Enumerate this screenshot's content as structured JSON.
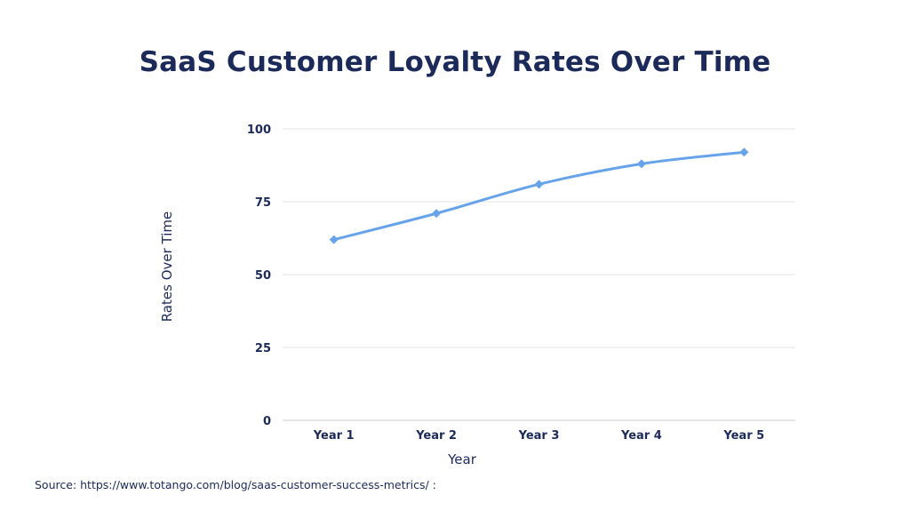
{
  "chart_data": {
    "type": "line",
    "title": "SaaS Customer Loyalty Rates Over Time",
    "xlabel": "Year",
    "ylabel": "Rates Over Time",
    "categories": [
      "Year 1",
      "Year 2",
      "Year 3",
      "Year 4",
      "Year 5"
    ],
    "series": [
      {
        "values": [
          62,
          71,
          81,
          88,
          92
        ]
      }
    ],
    "ylim": [
      0,
      100
    ],
    "yticks": [
      0,
      25,
      50,
      75,
      100
    ],
    "grid": true,
    "legend": "none",
    "line_color": "#66a3ea",
    "marker": "diamond"
  },
  "source": "Source: https://www.totango.com/blog/saas-customer-success-metrics/ :"
}
